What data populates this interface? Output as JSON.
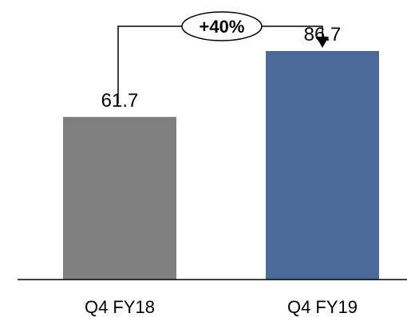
{
  "chart_data": {
    "type": "bar",
    "categories": [
      "Q4 FY18",
      "Q4 FY19"
    ],
    "values": [
      61.7,
      86.7
    ],
    "value_labels": [
      "61.7",
      "86.7"
    ],
    "colors": [
      "#808080",
      "#4A6A9A"
    ],
    "annotation": {
      "text": "+40%",
      "from": "Q4 FY18",
      "to": "Q4 FY19"
    },
    "ylim": [
      0,
      100
    ],
    "grid": false
  }
}
